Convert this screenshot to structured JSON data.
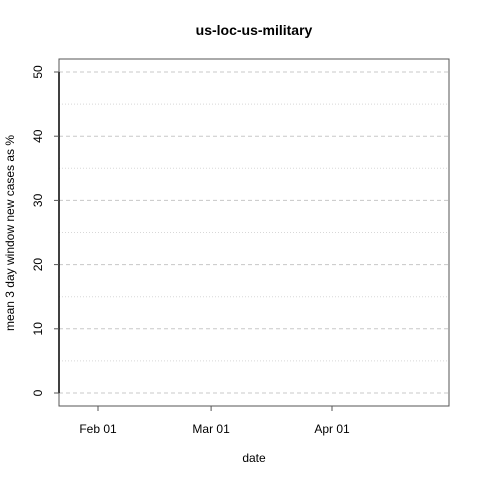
{
  "chart_data": {
    "type": "line",
    "title": "us-loc-us-military",
    "xlabel": "date",
    "ylabel": "mean  3  day window new cases as %",
    "x_ticks": [
      "Feb 01",
      "Mar 01",
      "Apr 01"
    ],
    "y_ticks": [
      "0",
      "10",
      "20",
      "30",
      "40",
      "50"
    ],
    "ylim": [
      0,
      50
    ],
    "xlim": [
      "2020-01-22",
      "2020-05-01"
    ],
    "grid": true,
    "series": [
      {
        "x": [
          "2020-01-22",
          "2020-01-22"
        ],
        "values": [
          0,
          50
        ],
        "color": "#000000"
      }
    ]
  }
}
